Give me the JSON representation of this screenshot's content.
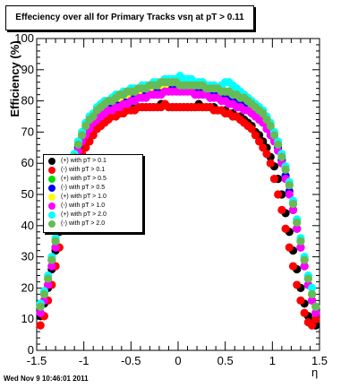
{
  "chart_data": {
    "type": "scatter",
    "title": "Effeciency over all for Primary Tracks vsη at pT > 0.11",
    "xlabel": "η",
    "ylabel": "Efficiency (%)",
    "xlim": [
      -1.5,
      1.5
    ],
    "ylim": [
      0,
      100
    ],
    "x_ticks": [
      "-1.5",
      "-1",
      "-0.5",
      "0",
      "0.5",
      "1",
      "1.5"
    ],
    "y_ticks": [
      "0",
      "10",
      "20",
      "30",
      "40",
      "50",
      "60",
      "70",
      "80",
      "90",
      "100"
    ],
    "grid": false,
    "legend_position": "center-left",
    "series": [
      {
        "name": "(+) with pT > 0.1",
        "color": "#000000",
        "x": [
          -1.46,
          -1.42,
          -1.38,
          -1.34,
          -1.3,
          -1.26,
          -1.22,
          -1.18,
          -1.14,
          -1.1,
          -1.06,
          -1.02,
          -0.98,
          -0.94,
          -0.9,
          -0.86,
          -0.82,
          -0.78,
          -0.74,
          -0.7,
          -0.66,
          -0.62,
          -0.58,
          -0.54,
          -0.5,
          -0.46,
          -0.42,
          -0.38,
          -0.34,
          -0.3,
          -0.26,
          -0.22,
          -0.18,
          -0.14,
          -0.1,
          -0.06,
          -0.02,
          0.02,
          0.06,
          0.1,
          0.14,
          0.18,
          0.22,
          0.26,
          0.3,
          0.34,
          0.38,
          0.42,
          0.46,
          0.5,
          0.54,
          0.58,
          0.62,
          0.66,
          0.7,
          0.74,
          0.78,
          0.82,
          0.86,
          0.9,
          0.94,
          0.98,
          1.02,
          1.06,
          1.1,
          1.14,
          1.18,
          1.22,
          1.26,
          1.3,
          1.34,
          1.38,
          1.42,
          1.46
        ],
        "y": [
          11,
          15,
          20,
          26,
          32,
          38,
          44,
          50,
          55,
          59,
          62,
          65,
          67,
          69,
          70,
          72,
          73,
          74,
          75,
          76,
          76,
          76,
          77,
          77,
          77,
          78,
          78,
          78,
          78,
          78,
          78,
          78,
          79,
          79,
          78,
          78,
          78,
          78,
          78,
          78,
          78,
          78,
          79,
          78,
          78,
          78,
          78,
          77,
          77,
          77,
          76,
          76,
          75,
          75,
          74,
          73,
          72,
          70,
          69,
          67,
          65,
          62,
          59,
          55,
          50,
          44,
          38,
          32,
          26,
          20,
          15,
          11,
          9,
          8
        ]
      },
      {
        "name": "(-) with pT > 0.1",
        "color": "#ff0000",
        "x": [
          -1.46,
          -1.42,
          -1.38,
          -1.34,
          -1.3,
          -1.26,
          -1.22,
          -1.18,
          -1.14,
          -1.1,
          -1.06,
          -1.02,
          -0.98,
          -0.94,
          -0.9,
          -0.86,
          -0.82,
          -0.78,
          -0.74,
          -0.7,
          -0.66,
          -0.62,
          -0.58,
          -0.54,
          -0.5,
          -0.46,
          -0.42,
          -0.38,
          -0.34,
          -0.3,
          -0.26,
          -0.22,
          -0.18,
          -0.14,
          -0.1,
          -0.06,
          -0.02,
          0.02,
          0.06,
          0.1,
          0.14,
          0.18,
          0.22,
          0.26,
          0.3,
          0.34,
          0.38,
          0.42,
          0.46,
          0.5,
          0.54,
          0.58,
          0.62,
          0.66,
          0.7,
          0.74,
          0.78,
          0.82,
          0.86,
          0.9,
          0.94,
          0.98,
          1.02,
          1.06,
          1.1,
          1.14,
          1.18,
          1.22,
          1.26,
          1.3,
          1.34,
          1.38,
          1.42,
          1.46
        ],
        "y": [
          8,
          11,
          16,
          21,
          27,
          33,
          39,
          45,
          50,
          55,
          60,
          63,
          65,
          67,
          69,
          71,
          72,
          73,
          74,
          75,
          75,
          76,
          76,
          77,
          77,
          77,
          78,
          78,
          78,
          78,
          78,
          78,
          78,
          79,
          78,
          78,
          78,
          78,
          78,
          78,
          78,
          78,
          78,
          78,
          78,
          78,
          77,
          77,
          77,
          76,
          76,
          75,
          75,
          74,
          73,
          72,
          71,
          69,
          67,
          65,
          63,
          60,
          55,
          50,
          45,
          39,
          33,
          27,
          21,
          16,
          12,
          9,
          8,
          10
        ]
      },
      {
        "name": "(+) with pT > 0.5",
        "color": "#00dd00",
        "x": [
          -1.46,
          -1.42,
          -1.38,
          -1.34,
          -1.3,
          -1.26,
          -1.22,
          -1.18,
          -1.14,
          -1.1,
          -1.06,
          -1.02,
          -0.98,
          -0.94,
          -0.9,
          -0.86,
          -0.82,
          -0.78,
          -0.74,
          -0.7,
          -0.66,
          -0.62,
          -0.58,
          -0.54,
          -0.5,
          -0.46,
          -0.42,
          -0.38,
          -0.34,
          -0.3,
          -0.26,
          -0.22,
          -0.18,
          -0.14,
          -0.1,
          -0.06,
          -0.02,
          0.02,
          0.06,
          0.1,
          0.14,
          0.18,
          0.22,
          0.26,
          0.3,
          0.34,
          0.38,
          0.42,
          0.46,
          0.5,
          0.54,
          0.58,
          0.62,
          0.66,
          0.7,
          0.74,
          0.78,
          0.82,
          0.86,
          0.9,
          0.94,
          0.98,
          1.02,
          1.06,
          1.1,
          1.14,
          1.18,
          1.22,
          1.26,
          1.3,
          1.34,
          1.38,
          1.42,
          1.46
        ],
        "y": [
          14,
          18,
          23,
          29,
          35,
          41,
          47,
          53,
          58,
          62,
          66,
          69,
          71,
          73,
          75,
          76,
          77,
          78,
          79,
          80,
          80,
          81,
          81,
          82,
          82,
          82,
          83,
          83,
          84,
          84,
          84,
          84,
          85,
          85,
          85,
          85,
          85,
          85,
          85,
          85,
          85,
          85,
          85,
          85,
          85,
          84,
          84,
          84,
          84,
          83,
          83,
          82,
          82,
          81,
          81,
          80,
          79,
          78,
          77,
          76,
          74,
          72,
          69,
          66,
          62,
          58,
          53,
          47,
          41,
          35,
          29,
          23,
          18,
          14
        ]
      },
      {
        "name": "(-) with pT > 0.5",
        "color": "#0000ff",
        "x": [
          -1.46,
          -1.42,
          -1.38,
          -1.34,
          -1.3,
          -1.26,
          -1.22,
          -1.18,
          -1.14,
          -1.1,
          -1.06,
          -1.02,
          -0.98,
          -0.94,
          -0.9,
          -0.86,
          -0.82,
          -0.78,
          -0.74,
          -0.7,
          -0.66,
          -0.62,
          -0.58,
          -0.54,
          -0.5,
          -0.46,
          -0.42,
          -0.38,
          -0.34,
          -0.3,
          -0.26,
          -0.22,
          -0.18,
          -0.14,
          -0.1,
          -0.06,
          -0.02,
          0.02,
          0.06,
          0.1,
          0.14,
          0.18,
          0.22,
          0.26,
          0.3,
          0.34,
          0.38,
          0.42,
          0.46,
          0.5,
          0.54,
          0.58,
          0.62,
          0.66,
          0.7,
          0.74,
          0.78,
          0.82,
          0.86,
          0.9,
          0.94,
          0.98,
          1.02,
          1.06,
          1.1,
          1.14,
          1.18,
          1.22,
          1.26,
          1.3,
          1.34,
          1.38,
          1.42,
          1.46
        ],
        "y": [
          12,
          16,
          21,
          27,
          33,
          39,
          45,
          51,
          56,
          61,
          65,
          68,
          70,
          72,
          74,
          75,
          76,
          77,
          78,
          79,
          79,
          80,
          80,
          81,
          81,
          81,
          82,
          82,
          83,
          83,
          83,
          83,
          84,
          84,
          84,
          84,
          84,
          84,
          84,
          84,
          84,
          84,
          84,
          84,
          83,
          83,
          83,
          83,
          82,
          82,
          82,
          81,
          81,
          80,
          80,
          79,
          78,
          77,
          76,
          75,
          73,
          71,
          68,
          65,
          61,
          56,
          51,
          45,
          39,
          33,
          27,
          21,
          16,
          12
        ]
      },
      {
        "name": "(+) with pT > 1.0",
        "color": "#ffff00",
        "x": [
          -1.46,
          -1.42,
          -1.38,
          -1.34,
          -1.3,
          -1.26,
          -1.22,
          -1.18,
          -1.14,
          -1.1,
          -1.06,
          -1.02,
          -0.98,
          -0.94,
          -0.9,
          -0.86,
          -0.82,
          -0.78,
          -0.74,
          -0.7,
          -0.66,
          -0.62,
          -0.58,
          -0.54,
          -0.5,
          -0.46,
          -0.42,
          -0.38,
          -0.34,
          -0.3,
          -0.26,
          -0.22,
          -0.18,
          -0.14,
          -0.1,
          -0.06,
          -0.02,
          0.02,
          0.06,
          0.1,
          0.14,
          0.18,
          0.22,
          0.26,
          0.3,
          0.34,
          0.38,
          0.42,
          0.46,
          0.5,
          0.54,
          0.58,
          0.62,
          0.66,
          0.7,
          0.74,
          0.78,
          0.82,
          0.86,
          0.9,
          0.94,
          0.98,
          1.02,
          1.06,
          1.1,
          1.14,
          1.18,
          1.22,
          1.26,
          1.3,
          1.34,
          1.38,
          1.42,
          1.46
        ],
        "y": [
          14,
          18,
          23,
          29,
          35,
          41,
          47,
          53,
          58,
          63,
          67,
          70,
          72,
          74,
          75,
          77,
          78,
          79,
          80,
          80,
          81,
          81,
          82,
          82,
          83,
          83,
          83,
          84,
          84,
          84,
          85,
          85,
          85,
          85,
          86,
          86,
          86,
          86,
          86,
          86,
          85,
          85,
          85,
          85,
          85,
          85,
          84,
          84,
          84,
          83,
          83,
          82,
          82,
          81,
          81,
          80,
          79,
          78,
          77,
          76,
          74,
          72,
          70,
          67,
          63,
          58,
          53,
          47,
          41,
          35,
          29,
          23,
          18,
          14
        ]
      },
      {
        "name": "(-) with pT > 1.0",
        "color": "#ff00ff",
        "x": [
          -1.46,
          -1.42,
          -1.38,
          -1.34,
          -1.3,
          -1.26,
          -1.22,
          -1.18,
          -1.14,
          -1.1,
          -1.06,
          -1.02,
          -0.98,
          -0.94,
          -0.9,
          -0.86,
          -0.82,
          -0.78,
          -0.74,
          -0.7,
          -0.66,
          -0.62,
          -0.58,
          -0.54,
          -0.5,
          -0.46,
          -0.42,
          -0.38,
          -0.34,
          -0.3,
          -0.26,
          -0.22,
          -0.18,
          -0.14,
          -0.1,
          -0.06,
          -0.02,
          0.02,
          0.06,
          0.1,
          0.14,
          0.18,
          0.22,
          0.26,
          0.3,
          0.34,
          0.38,
          0.42,
          0.46,
          0.5,
          0.54,
          0.58,
          0.62,
          0.66,
          0.7,
          0.74,
          0.78,
          0.82,
          0.86,
          0.9,
          0.94,
          0.98,
          1.02,
          1.06,
          1.1,
          1.14,
          1.18,
          1.22,
          1.26,
          1.3,
          1.34,
          1.38,
          1.42,
          1.46
        ],
        "y": [
          12,
          16,
          21,
          27,
          33,
          39,
          45,
          50,
          55,
          60,
          64,
          67,
          69,
          71,
          73,
          74,
          75,
          76,
          77,
          77,
          78,
          78,
          79,
          79,
          80,
          80,
          81,
          81,
          81,
          82,
          82,
          82,
          82,
          83,
          83,
          83,
          83,
          83,
          83,
          83,
          83,
          82,
          82,
          82,
          82,
          81,
          81,
          81,
          80,
          80,
          79,
          79,
          78,
          78,
          77,
          77,
          76,
          75,
          74,
          73,
          71,
          69,
          67,
          64,
          60,
          55,
          50,
          45,
          39,
          33,
          27,
          21,
          16,
          12
        ]
      },
      {
        "name": "(+) with pT > 2.0",
        "color": "#00ffff",
        "x": [
          -1.46,
          -1.42,
          -1.38,
          -1.34,
          -1.3,
          -1.26,
          -1.22,
          -1.18,
          -1.14,
          -1.1,
          -1.06,
          -1.02,
          -0.98,
          -0.94,
          -0.9,
          -0.86,
          -0.82,
          -0.78,
          -0.74,
          -0.7,
          -0.66,
          -0.62,
          -0.58,
          -0.54,
          -0.5,
          -0.46,
          -0.42,
          -0.38,
          -0.34,
          -0.3,
          -0.26,
          -0.22,
          -0.18,
          -0.14,
          -0.1,
          -0.06,
          -0.02,
          0.02,
          0.06,
          0.1,
          0.14,
          0.18,
          0.22,
          0.26,
          0.3,
          0.34,
          0.38,
          0.42,
          0.46,
          0.5,
          0.54,
          0.58,
          0.62,
          0.66,
          0.7,
          0.74,
          0.78,
          0.82,
          0.86,
          0.9,
          0.94,
          0.98,
          1.02,
          1.06,
          1.1,
          1.14,
          1.18,
          1.22,
          1.26,
          1.3,
          1.34,
          1.38,
          1.42,
          1.46
        ],
        "y": [
          15,
          19,
          24,
          30,
          36,
          42,
          48,
          54,
          59,
          63,
          67,
          70,
          73,
          75,
          76,
          78,
          79,
          80,
          80,
          81,
          82,
          82,
          83,
          83,
          84,
          84,
          84,
          85,
          85,
          85,
          86,
          86,
          86,
          87,
          87,
          87,
          87,
          88,
          87,
          87,
          87,
          86,
          86,
          86,
          85,
          85,
          85,
          84,
          85,
          86,
          86,
          85,
          84,
          83,
          82,
          81,
          80,
          79,
          78,
          77,
          75,
          73,
          70,
          67,
          63,
          59,
          54,
          48,
          42,
          36,
          30,
          24,
          20,
          14
        ]
      },
      {
        "name": "(-) with pT > 2.0",
        "color": "#66bb55",
        "x": [
          -1.46,
          -1.42,
          -1.38,
          -1.34,
          -1.3,
          -1.26,
          -1.22,
          -1.18,
          -1.14,
          -1.1,
          -1.06,
          -1.02,
          -0.98,
          -0.94,
          -0.9,
          -0.86,
          -0.82,
          -0.78,
          -0.74,
          -0.7,
          -0.66,
          -0.62,
          -0.58,
          -0.54,
          -0.5,
          -0.46,
          -0.42,
          -0.38,
          -0.34,
          -0.3,
          -0.26,
          -0.22,
          -0.18,
          -0.14,
          -0.1,
          -0.06,
          -0.02,
          0.02,
          0.06,
          0.1,
          0.14,
          0.18,
          0.22,
          0.26,
          0.3,
          0.34,
          0.38,
          0.42,
          0.46,
          0.5,
          0.54,
          0.58,
          0.62,
          0.66,
          0.7,
          0.74,
          0.78,
          0.82,
          0.86,
          0.9,
          0.94,
          0.98,
          1.02,
          1.06,
          1.1,
          1.14,
          1.18,
          1.22,
          1.26,
          1.3,
          1.34,
          1.38,
          1.42,
          1.46
        ],
        "y": [
          14,
          18,
          23,
          29,
          35,
          41,
          47,
          53,
          58,
          62,
          66,
          69,
          72,
          74,
          75,
          77,
          78,
          79,
          80,
          80,
          81,
          82,
          82,
          83,
          83,
          83,
          84,
          84,
          84,
          85,
          85,
          85,
          86,
          86,
          86,
          86,
          86,
          85,
          85,
          85,
          85,
          85,
          85,
          85,
          84,
          84,
          84,
          84,
          83,
          83,
          83,
          82,
          82,
          81,
          81,
          80,
          79,
          78,
          77,
          76,
          74,
          72,
          69,
          66,
          62,
          58,
          53,
          47,
          41,
          35,
          29,
          23,
          18,
          14
        ]
      }
    ]
  },
  "footer": {
    "timestamp": "Wed Nov  9 10:46:01 2011"
  }
}
